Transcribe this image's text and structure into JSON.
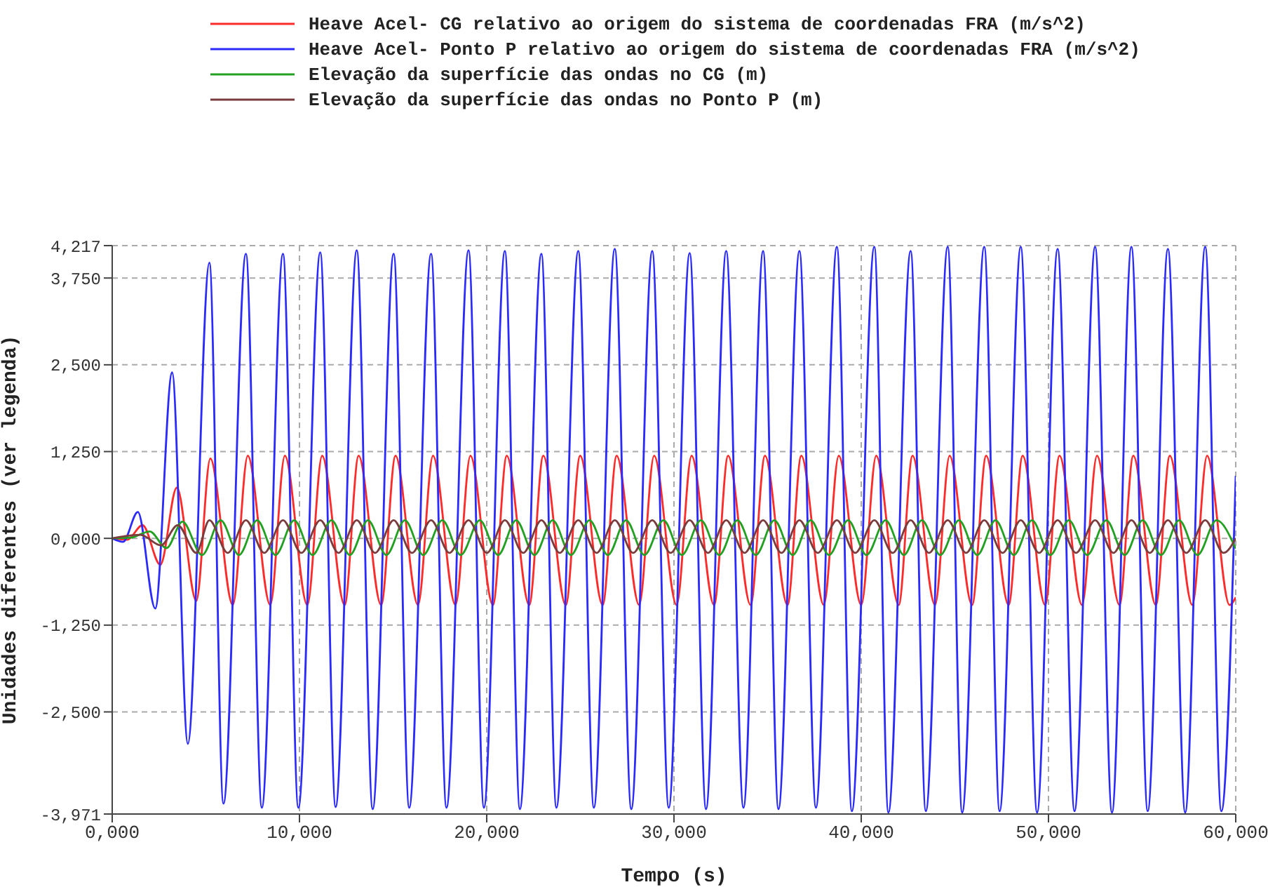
{
  "chart_data": {
    "type": "line",
    "xlabel": "Tempo (s)",
    "ylabel": "Unidades diferentes (ver legenda)",
    "legend": "top left",
    "grid": true,
    "marker": "none",
    "line_style": "solid",
    "xlim": [
      0,
      60
    ],
    "xticks": [
      {
        "value": 0,
        "label": "0,000"
      },
      {
        "value": 10,
        "label": "10,000"
      },
      {
        "value": 20,
        "label": "20,000"
      },
      {
        "value": 30,
        "label": "30,000"
      },
      {
        "value": 40,
        "label": "40,000"
      },
      {
        "value": 50,
        "label": "50,000"
      },
      {
        "value": 60,
        "label": "60,000"
      }
    ],
    "ylim": [
      -3.971,
      4.217
    ],
    "yticks": [
      {
        "value": -3.971,
        "label": "-3,971"
      },
      {
        "value": -2.5,
        "label": "-2,500"
      },
      {
        "value": -1.25,
        "label": "-1,250"
      },
      {
        "value": 0,
        "label": "0,000"
      },
      {
        "value": 1.25,
        "label": "1,250"
      },
      {
        "value": 2.5,
        "label": "2,500"
      },
      {
        "value": 3.75,
        "label": "3,750"
      },
      {
        "value": 4.217,
        "label": "4,217"
      }
    ],
    "series": [
      {
        "name": "Heave Acel- CG relativo ao origem do sistema de coordenadas FRA (m/s^2)",
        "color": "#ff2a2a",
        "x": [
          0,
          0.8,
          1.62,
          2.57,
          3.45,
          4.49,
          5.24,
          6.44,
          7.24,
          8.44,
          9.22,
          10.42,
          11.21,
          12.41,
          13.16,
          14.36,
          15.13,
          16.33,
          17.13,
          18.33,
          19.13,
          20.33,
          21.07,
          22.27,
          23.02,
          24.22,
          24.99,
          26.19,
          26.94,
          28.14,
          28.94,
          30.14,
          30.94,
          32.14,
          32.89,
          34.09,
          34.86,
          36.06,
          36.8,
          38,
          38.8,
          40,
          40.8,
          42,
          42.74,
          43.94,
          44.72,
          45.92,
          46.67,
          47.87,
          48.62,
          49.82,
          50.59,
          51.79,
          52.59,
          53.79,
          54.53,
          55.73,
          56.48,
          57.68,
          58.47,
          59.67,
          60
        ],
        "values": [
          0,
          -0.02,
          0.19,
          -0.38,
          0.73,
          -0.9,
          1.15,
          -0.96,
          1.19,
          -0.96,
          1.19,
          -0.96,
          1.19,
          -0.96,
          1.19,
          -0.96,
          1.19,
          -0.96,
          1.19,
          -0.96,
          1.19,
          -0.96,
          1.19,
          -0.96,
          1.19,
          -0.96,
          1.19,
          -0.96,
          1.19,
          -0.96,
          1.19,
          -0.96,
          1.19,
          -0.96,
          1.19,
          -0.96,
          1.19,
          -0.96,
          1.19,
          -0.96,
          1.19,
          -0.96,
          1.19,
          -0.96,
          1.19,
          -0.96,
          1.19,
          -0.96,
          1.19,
          -0.96,
          1.19,
          -0.96,
          1.19,
          -0.96,
          1.19,
          -0.96,
          1.19,
          -0.96,
          1.19,
          -0.96,
          1.19,
          -0.96,
          -0.85
        ]
      },
      {
        "name": "Heave Acel- Ponto P relativo ao origem do sistema de coordenadas FRA (m/s^2)",
        "color": "#2a2aff",
        "x": [
          0,
          0.58,
          1.37,
          2.3,
          3.2,
          4.04,
          5.19,
          5.94,
          7.14,
          7.99,
          9.12,
          9.94,
          11.11,
          11.93,
          13.06,
          13.91,
          15.03,
          15.86,
          17.03,
          17.85,
          19.03,
          19.85,
          20.97,
          21.77,
          22.92,
          23.72,
          24.89,
          25.72,
          26.84,
          27.72,
          28.84,
          29.72,
          30.84,
          31.71,
          32.79,
          33.71,
          34.76,
          35.58,
          36.7,
          37.58,
          38.7,
          39.5,
          40.7,
          41.45,
          42.64,
          43.45,
          44.62,
          45.39,
          46.57,
          47.39,
          48.52,
          49.39,
          50.49,
          51.39,
          52.49,
          53.39,
          54.43,
          55.3,
          56.38,
          57.3,
          58.37,
          59.23,
          60
        ],
        "values": [
          0,
          -0.05,
          0.38,
          -1.01,
          2.39,
          -2.96,
          3.97,
          -3.82,
          4.1,
          -3.88,
          4.1,
          -3.88,
          4.12,
          -3.87,
          4.15,
          -3.9,
          4.1,
          -3.88,
          4.1,
          -3.88,
          4.15,
          -3.88,
          4.14,
          -3.9,
          4.1,
          -3.88,
          4.14,
          -3.88,
          4.17,
          -3.9,
          4.14,
          -3.88,
          4.11,
          -3.9,
          4.14,
          -3.88,
          4.14,
          -3.9,
          4.14,
          -3.88,
          4.2,
          -3.93,
          4.2,
          -3.95,
          4.14,
          -3.93,
          4.2,
          -3.95,
          4.2,
          -3.93,
          4.2,
          -3.95,
          4.17,
          -3.93,
          4.2,
          -3.95,
          4.2,
          -3.93,
          4.17,
          -3.95,
          4.2,
          -3.93,
          0.9
        ]
      },
      {
        "name": "Elevação da superfície das ondas no CG (m)",
        "color": "#22a022",
        "x": [
          0,
          1,
          2,
          2.9,
          3.75,
          4.8,
          5.79,
          6.77,
          7.74,
          8.72,
          9.72,
          10.7,
          11.71,
          12.69,
          13.66,
          14.64,
          15.63,
          16.61,
          17.63,
          18.61,
          19.63,
          20.61,
          21.57,
          22.55,
          23.52,
          24.5,
          25.49,
          26.47,
          27.44,
          28.42,
          29.44,
          30.42,
          31.44,
          32.42,
          33.39,
          34.37,
          35.36,
          36.34,
          37.3,
          38.28,
          39.3,
          40.28,
          41.3,
          42.28,
          43.24,
          44.22,
          45.22,
          46.2,
          47.17,
          48.15,
          49.12,
          50.1,
          51.09,
          52.07,
          53.09,
          54.07,
          55.03,
          56.01,
          56.98,
          57.96,
          58.97,
          60
        ],
        "values": [
          0,
          0.01,
          0.1,
          -0.14,
          0.24,
          -0.24,
          0.26,
          -0.24,
          0.26,
          -0.24,
          0.26,
          -0.24,
          0.26,
          -0.24,
          0.26,
          -0.24,
          0.26,
          -0.24,
          0.26,
          -0.24,
          0.26,
          -0.24,
          0.26,
          -0.24,
          0.26,
          -0.24,
          0.26,
          -0.24,
          0.26,
          -0.24,
          0.26,
          -0.24,
          0.26,
          -0.24,
          0.26,
          -0.24,
          0.26,
          -0.24,
          0.26,
          -0.24,
          0.26,
          -0.24,
          0.26,
          -0.24,
          0.26,
          -0.24,
          0.26,
          -0.24,
          0.26,
          -0.24,
          0.26,
          -0.24,
          0.26,
          -0.24,
          0.26,
          -0.24,
          0.26,
          -0.24,
          0.26,
          -0.24,
          0.26,
          -0.15
        ]
      },
      {
        "name": "Elevação da superfície das ondas no Ponto P (m)",
        "color": "#7a3c3c",
        "x": [
          0,
          1.5,
          2.6,
          3.5,
          4.49,
          5.19,
          6.17,
          7.14,
          8.12,
          9.12,
          10.1,
          11.11,
          12.09,
          13.06,
          14.04,
          15.03,
          16.01,
          17.03,
          18.01,
          19.03,
          20.01,
          20.97,
          21.95,
          22.92,
          23.9,
          24.89,
          25.87,
          26.84,
          27.82,
          28.84,
          29.82,
          30.84,
          31.82,
          32.79,
          33.77,
          34.76,
          35.74,
          36.7,
          37.68,
          38.7,
          39.68,
          40.7,
          41.68,
          42.64,
          43.62,
          44.62,
          45.6,
          46.57,
          47.55,
          48.52,
          49.5,
          50.49,
          51.47,
          52.49,
          53.47,
          54.43,
          55.41,
          56.38,
          57.36,
          58.37,
          59.35,
          60
        ],
        "values": [
          0,
          0.05,
          -0.1,
          0.19,
          -0.21,
          0.26,
          -0.21,
          0.26,
          -0.21,
          0.26,
          -0.21,
          0.26,
          -0.21,
          0.26,
          -0.21,
          0.26,
          -0.21,
          0.26,
          -0.21,
          0.26,
          -0.21,
          0.26,
          -0.21,
          0.26,
          -0.21,
          0.26,
          -0.21,
          0.26,
          -0.21,
          0.26,
          -0.21,
          0.26,
          -0.21,
          0.26,
          -0.21,
          0.26,
          -0.21,
          0.26,
          -0.21,
          0.26,
          -0.21,
          0.26,
          -0.21,
          0.26,
          -0.21,
          0.26,
          -0.21,
          0.26,
          -0.21,
          0.26,
          -0.21,
          0.26,
          -0.21,
          0.26,
          -0.21,
          0.26,
          -0.21,
          0.26,
          -0.21,
          0.26,
          -0.21,
          0
        ]
      }
    ]
  }
}
